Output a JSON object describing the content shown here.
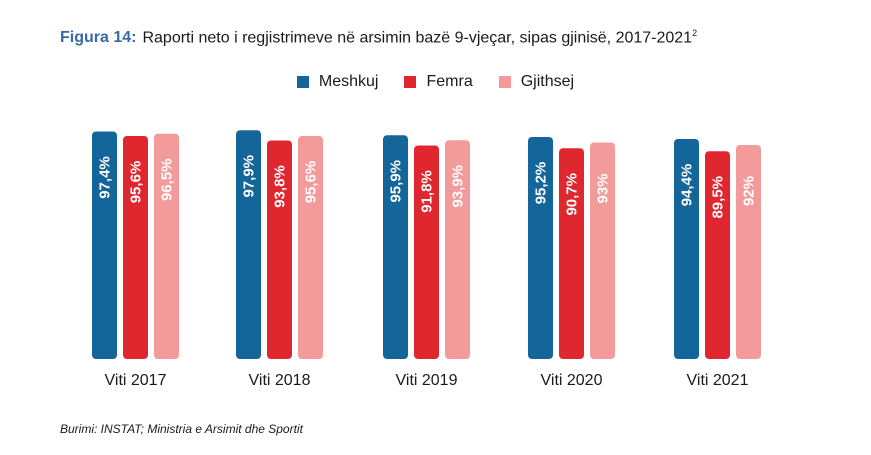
{
  "title": {
    "figure_label": "Figura 14:",
    "text": "Raporti neto i regjistrimeve në arsimin bazë 9-vjeçar, sipas gjinisë, 2017-2021",
    "footnote_mark": "2"
  },
  "source": "Burimi: INSTAT; Ministria e Arsimit dhe Sportit",
  "chart_data": {
    "type": "bar",
    "categories": [
      "Viti 2017",
      "Viti 2018",
      "Viti 2019",
      "Viti 2020",
      "Viti 2021"
    ],
    "series": [
      {
        "name": "Meshkuj",
        "color": "#13659a",
        "values": [
          97.4,
          97.9,
          95.9,
          95.2,
          94.4
        ],
        "labels": [
          "97,4%",
          "97,9%",
          "95,9%",
          "95,2%",
          "94,4%"
        ]
      },
      {
        "name": "Femra",
        "color": "#e0262f",
        "values": [
          95.6,
          93.8,
          91.8,
          90.7,
          89.5
        ],
        "labels": [
          "95,6%",
          "93,8%",
          "91,8%",
          "90,7%",
          "89,5%"
        ]
      },
      {
        "name": "Gjithsej",
        "color": "#f39a9a",
        "values": [
          96.5,
          95.6,
          93.9,
          93,
          92
        ],
        "labels": [
          "96,5%",
          "95,6%",
          "93,9%",
          "93%",
          "92%"
        ]
      }
    ],
    "legend_position": "top-center",
    "grid": false
  }
}
